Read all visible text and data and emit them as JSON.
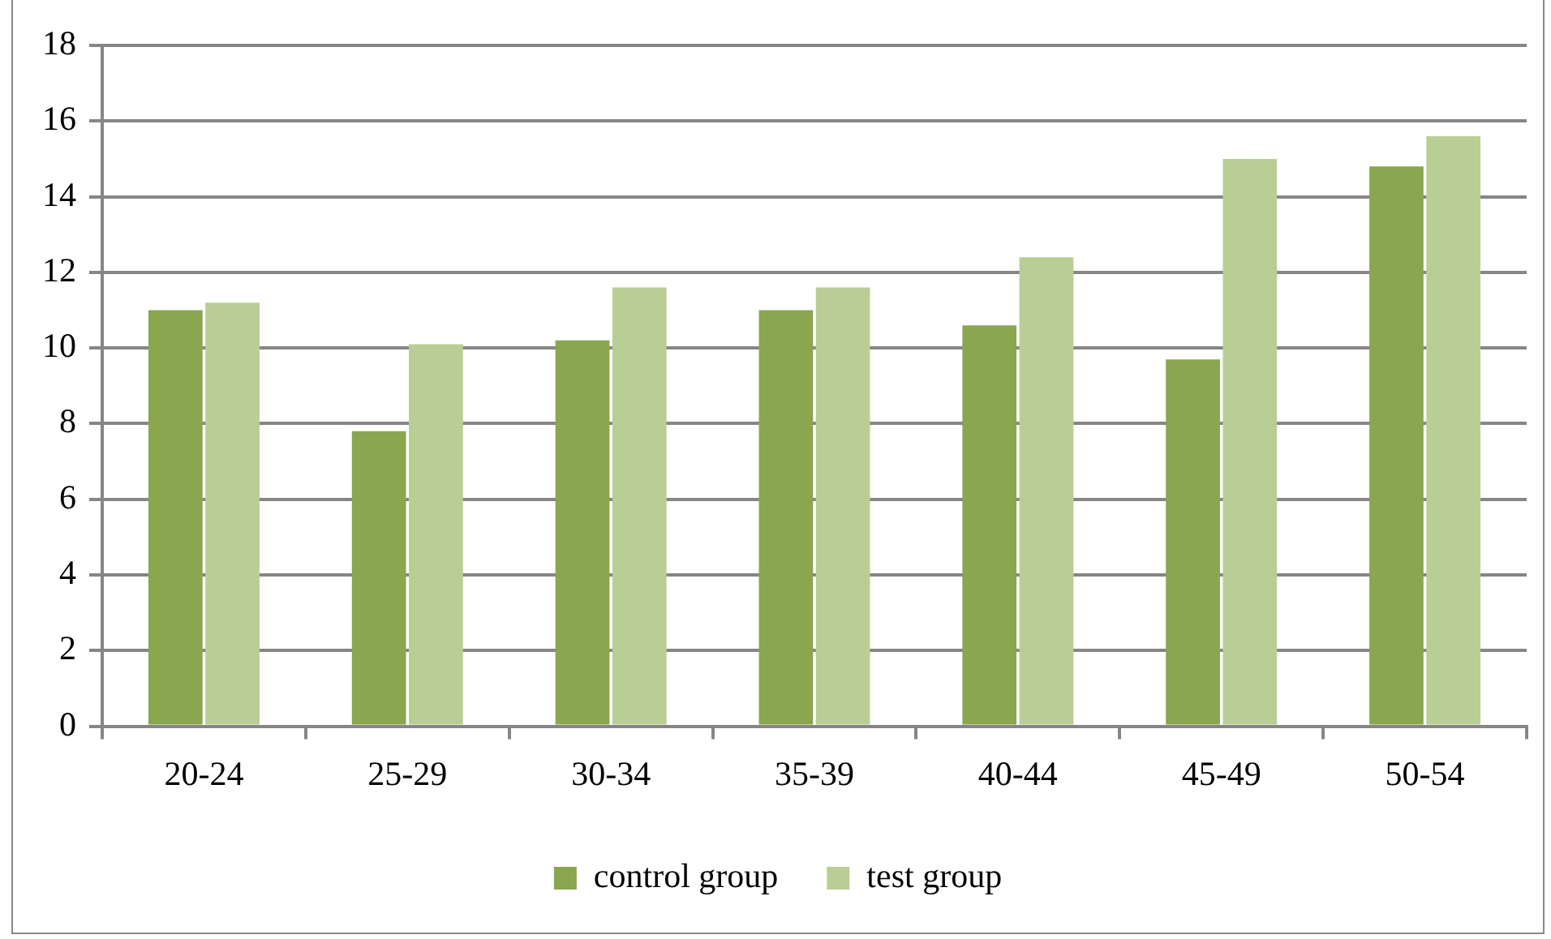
{
  "chart_data": {
    "type": "bar",
    "categories": [
      "20-24",
      "25-29",
      "30-34",
      "35-39",
      "40-44",
      "45-49",
      "50-54"
    ],
    "series": [
      {
        "name": "control group",
        "color": "#8aa64e",
        "values": [
          11.0,
          7.8,
          10.2,
          11.0,
          10.6,
          9.7,
          14.8
        ]
      },
      {
        "name": "test group",
        "color": "#b9ce95",
        "values": [
          11.2,
          10.1,
          11.6,
          11.6,
          12.4,
          15.0,
          15.6
        ]
      }
    ],
    "ylim": [
      0,
      18
    ],
    "yticks": [
      0,
      2,
      4,
      6,
      8,
      10,
      12,
      14,
      16,
      18
    ],
    "grid": "y",
    "legend": "bottom"
  }
}
